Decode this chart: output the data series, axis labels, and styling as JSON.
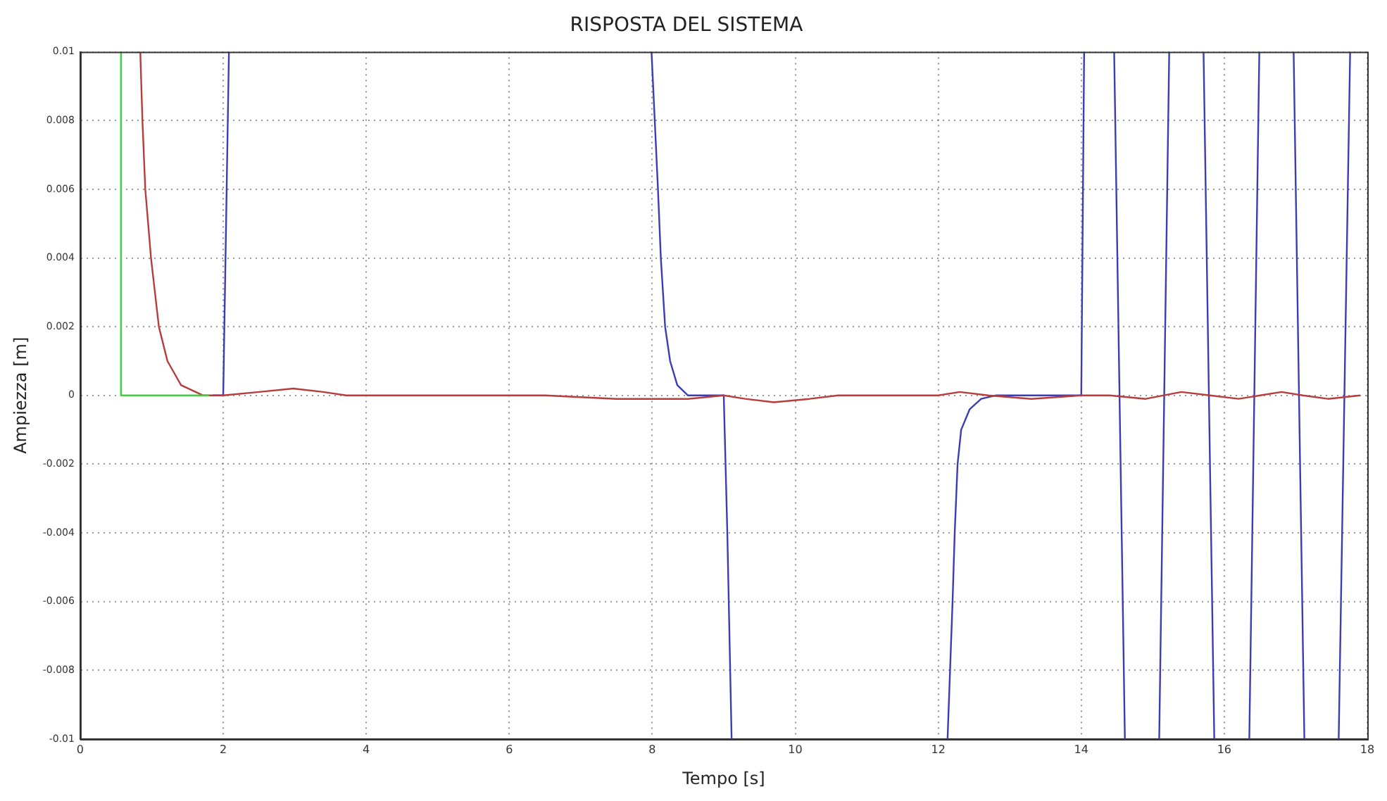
{
  "chart_data": {
    "type": "line",
    "title": "RISPOSTA DEL SISTEMA",
    "xlabel": "Tempo [s]",
    "ylabel": "Ampiezza [m]",
    "xlim": [
      0,
      18
    ],
    "xticks": [
      0,
      2,
      4,
      6,
      8,
      10,
      12,
      14,
      16,
      {
        "value": 18,
        "label": "18"
      }
    ],
    "ylim": [
      -0.01,
      0.01
    ],
    "yticks": [
      -0.01,
      -0.008,
      -0.006,
      -0.004,
      -0.002,
      0,
      0.002,
      0.004,
      0.006,
      0.008,
      0.01
    ],
    "grid": true,
    "legend": false,
    "line_style": "solid",
    "series": [
      {
        "color": "#44cc44",
        "x": [
          0.57,
          0.57,
          1.8
        ],
        "values": [
          0.01,
          0,
          0
        ]
      },
      {
        "color": "#b83c3c",
        "x": [
          0.84,
          0.87,
          0.91,
          0.99,
          1.1,
          1.22,
          1.41,
          1.72,
          2.0,
          2.5,
          2.98,
          3.4,
          3.72,
          4.0,
          4.5,
          5.5,
          6.5,
          7.5,
          8.5,
          9.0,
          9.3,
          9.7,
          10.2,
          10.6,
          11.5,
          12.0,
          12.3,
          12.7,
          13.3,
          14.0,
          14.4,
          14.9,
          15.4,
          15.8,
          16.2,
          16.5,
          16.8,
          17.1,
          17.45,
          17.9
        ],
        "values": [
          0.01,
          0.008,
          0.006,
          0.004,
          0.002,
          0.001,
          0.0003,
          0,
          0,
          0.0001,
          0.0002,
          0.0001,
          0,
          0,
          0,
          0,
          0,
          -0.0001,
          -0.0001,
          0,
          -0.0001,
          -0.0002,
          -0.0001,
          0,
          0,
          0,
          0.0001,
          0,
          -0.0001,
          0,
          0,
          -0.0001,
          0.0001,
          0,
          -0.0001,
          0,
          0.0001,
          0,
          -0.0001,
          0
        ]
      },
      {
        "color": "#3c3cb4",
        "x": [
          1.85,
          2.0,
          2.08,
          2.5,
          7.99,
          8.08,
          8.12,
          8.18,
          8.25,
          8.35,
          8.5,
          9.0,
          9.05,
          9.11,
          10,
          12.13,
          12.2,
          12.23,
          12.27,
          12.32,
          12.44,
          12.6,
          12.8,
          14.0,
          14.04,
          14.2,
          14.46,
          14.61,
          14.8,
          15.09,
          15.23,
          15.5,
          15.71,
          15.86,
          16.1,
          16.35,
          16.49,
          16.7,
          16.97,
          17.12,
          17.4,
          17.6,
          17.76
        ],
        "values": [
          0,
          0,
          0.01,
          null,
          0.01,
          0.006,
          0.004,
          0.002,
          0.001,
          0.0003,
          0,
          0,
          -0.004,
          -0.01,
          null,
          -0.01,
          -0.006,
          -0.004,
          -0.002,
          -0.001,
          -0.0004,
          -0.0001,
          0,
          0,
          0.01,
          null,
          0.01,
          -0.01,
          null,
          -0.01,
          0.01,
          null,
          0.01,
          -0.01,
          null,
          -0.01,
          0.01,
          null,
          0.01,
          -0.01,
          null,
          -0.01,
          0.01
        ]
      }
    ]
  }
}
